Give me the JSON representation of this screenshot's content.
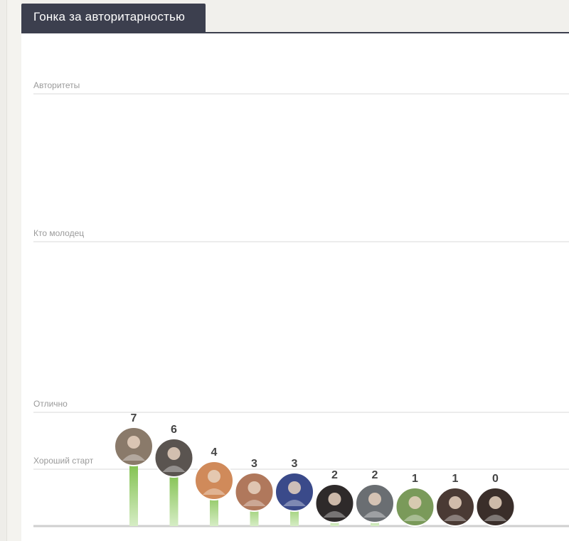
{
  "header": {
    "tab_title": "Гонка за авторитарностью"
  },
  "colors": {
    "bar_top": "#6bb52f",
    "bar_bottom": "#d6edc5",
    "tab_bg": "#3c3f4e",
    "grid": "#d9d9d9",
    "baseline": "#cfcfcf"
  },
  "chart_data": {
    "type": "bar",
    "title": "Гонка за авторитарностью",
    "xlabel": "",
    "ylabel": "",
    "ylim": [
      0,
      50
    ],
    "levels": [
      {
        "label": "Хороший старт",
        "value": 5
      },
      {
        "label": "Отлично",
        "value": 10
      },
      {
        "label": "Кто молодец",
        "value": 25
      },
      {
        "label": "Авторитеты",
        "value": 38
      }
    ],
    "values": [
      7,
      6,
      4,
      3,
      3,
      2,
      2,
      1,
      1,
      0
    ],
    "avatars": [
      {
        "icon": "avatar-man-cap-icon",
        "color": "#8a7a6a"
      },
      {
        "icon": "avatar-man-sunglasses-icon",
        "color": "#5a5450"
      },
      {
        "icon": "avatar-girl-illustration-icon",
        "color": "#d08a5a"
      },
      {
        "icon": "avatar-woman-blonde-icon",
        "color": "#b0785c"
      },
      {
        "icon": "avatar-woman-blue-dress-icon",
        "color": "#3a4a8a"
      },
      {
        "icon": "avatar-woman-dark-hair-icon",
        "color": "#2e2a2a"
      },
      {
        "icon": "avatar-bird-icon",
        "color": "#6a6e72"
      },
      {
        "icon": "avatar-woman-baby-icon",
        "color": "#7a9a5a"
      },
      {
        "icon": "avatar-man-dark-icon",
        "color": "#4a3a34"
      },
      {
        "icon": "avatar-woman-portrait-icon",
        "color": "#3a2e2a"
      }
    ],
    "grid": true,
    "legend": "none"
  }
}
